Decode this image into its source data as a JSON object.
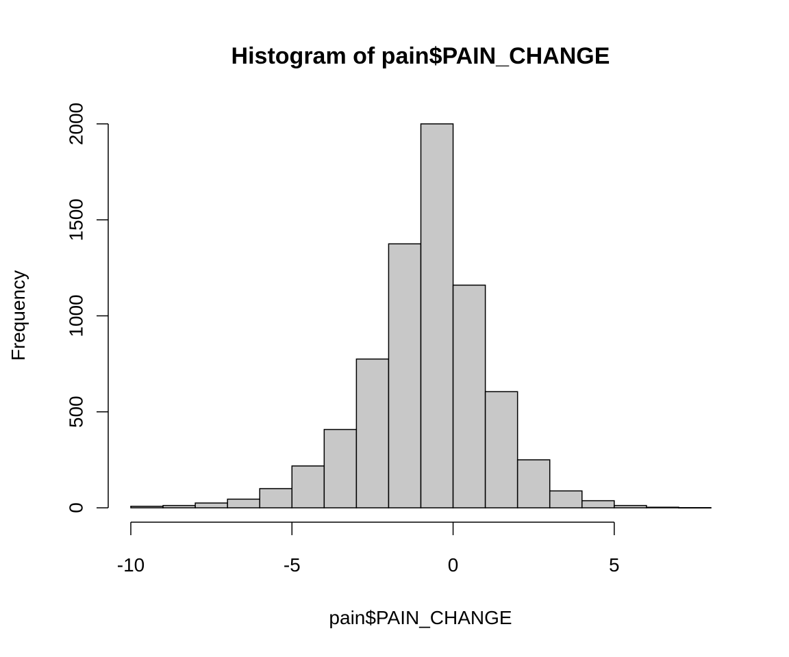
{
  "chart_data": {
    "type": "bar",
    "title": "Histogram of pain$PAIN_CHANGE",
    "xlabel": "pain$PAIN_CHANGE",
    "ylabel": "Frequency",
    "bin_edges": [
      -10,
      -9,
      -8,
      -7,
      -6,
      -5,
      -4,
      -3,
      -2,
      -1,
      0,
      1,
      2,
      3,
      4,
      5,
      6,
      7,
      8
    ],
    "values": [
      8,
      12,
      25,
      45,
      100,
      218,
      408,
      775,
      1375,
      2000,
      1160,
      605,
      250,
      88,
      37,
      12,
      3,
      1
    ],
    "x_ticks": [
      -10,
      -5,
      0,
      5
    ],
    "x_tick_labels": [
      "-10",
      "-5",
      "0",
      "5"
    ],
    "y_ticks": [
      0,
      500,
      1000,
      1500,
      2000
    ],
    "y_tick_labels": [
      "0",
      "500",
      "1000",
      "1500",
      "2000"
    ],
    "xlim": [
      -10,
      8
    ],
    "ylim": [
      0,
      2000
    ],
    "bar_color": "#c8c8c8",
    "grid": false,
    "legend": "none"
  }
}
